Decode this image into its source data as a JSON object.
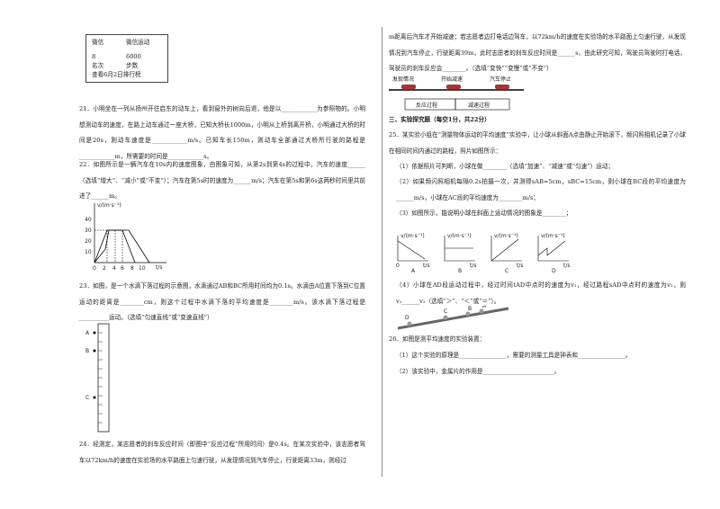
{
  "wechat_box": {
    "row1": [
      "微信",
      "微信运动"
    ],
    "row2": [
      "8",
      "6000"
    ],
    "row3": [
      "名次",
      "步数"
    ],
    "row4": "查看6月2日排行榜"
  },
  "q21": "21．小明坐在一列从扬州开往启东的动车上，看到窗外的树向后退，他是以____________为参照物的。小明想测动车的速度，在路上动车通过一座大桥，已知大桥长1000m，小明从上桥到离开桥，小明通过大桥的时间是20s，则动车速度是____________m/s。已知车长150m，则动车全部通过大桥所行驶的路程是____________m，所需要的时间是____________s。",
  "q22": {
    "text": "22．如图所示是一辆汽车在10s内的速度图象，由图象可知，从第2s到第4s的过程中，汽车的速度______（选填“增大”、“减小”或“不变”）；汽车在第5s时的速度为______m/s；汽车在第5s和第6s这两秒时间里共前进了______m。",
    "graph": {
      "y_label": "v/(m·s⁻¹)",
      "x_label": "t/s",
      "y_ticks": [
        "10",
        "20",
        "30",
        "40"
      ],
      "x_ticks": [
        "0",
        "2",
        "4",
        "6",
        "8",
        "10"
      ]
    }
  },
  "q23": {
    "text": "23．如图，是一个水滴下落过程的示意图，水滴通过AB和BC所用时间均为0.1s。水滴由A位置下落到C位置运动的距离是________cm，则这个过程中水滴下落的平均速度是________m/s。该水滴下落过程是__________运动。（选填“匀速直线”或“变速直线”）",
    "points": [
      "A",
      "B",
      "C"
    ]
  },
  "q24": {
    "text": "24．经测定，某志愿者的刹车反应时间（即图中“反应过程”所用时间）是0.4s。在某次实验中，该志愿者驾车以72km/h的速度在实验场的水平路面上匀速行驶，从发现情况到汽车停止，行驶距离33m，则经过",
    "continued": "m距离后汽车才开始减速；若志愿者边打电话边驾车，以72km/h的速度在实验场的水平路面上匀速行驶，从发现情况到汽车停止，行驶距离39m，此时志愿者的刹车反应时间是______s，由此研究可知，驾驶员驾驶时打电话，驾驶员的刹车反应会________。（选填“变快”“变慢”或“不变”）",
    "diagram": {
      "top": [
        "发现情况",
        "开始减速",
        "汽车停止"
      ],
      "bottom": [
        "反应过程",
        "减速过程"
      ]
    }
  },
  "section3": "三、实验探究题（每空1分，共22分）",
  "q25": {
    "text": "25．某实验小组在“测量物体运动的平均速度”实验中，让小球从斜面A点由静止开始滚下，频闪照相机记录了小球在相同时间内通过的路程，照片如图所示：",
    "parts": [
      "（1）依据照片可判断，小球在做________（选填“加速”、“减速”或“匀速”）运动；",
      "（2）如果频闪照相机每隔0.2s拍摄一次，并测得sAB=5cm，sBC=15cm，则小球在BC段的平均速度为______m/s，小球在AC段的平均速度为________m/s；",
      "（3）如图所示，能说明小球在斜面上运动情况的图象是________；",
      "（4）小球在AD段运动过程中，经过时间tAD中点时的速度为v₁，经过路程sAD中点时的速度为v₂，则v₁______v₂（选填“＞”、“＜”或“＝”）。"
    ],
    "graphs": {
      "y_label": "v/(m·s⁻¹)",
      "x_label": "t/s",
      "origin": "0",
      "names": [
        "A",
        "B",
        "C",
        "D"
      ]
    },
    "incline_points": [
      "A",
      "B",
      "C",
      "D"
    ]
  },
  "q26": {
    "text": "26．如图是测平均速度的实验装置：",
    "parts": [
      "（1）这个实验的原理是________________，需要的测量工具是钟表和________________。",
      "（2）该实验中，金属片的作用是________________________。"
    ]
  }
}
